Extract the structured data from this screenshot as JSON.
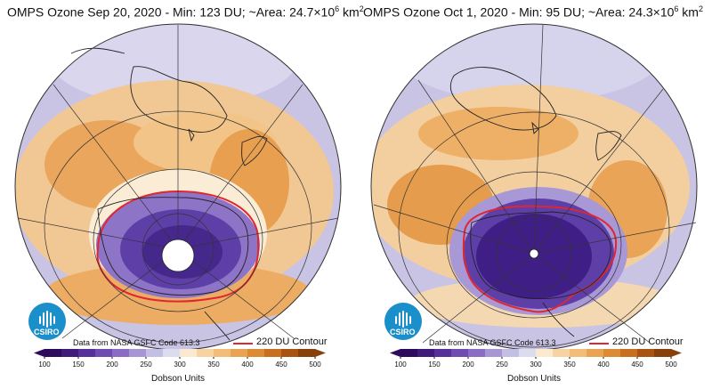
{
  "panels": [
    {
      "title_prefix": "OMPS Ozone  Sep 20, 2020 - Min: 123 DU; ~Area: 24.7×10",
      "title_exp": "6",
      "title_unit": " km",
      "title_unit_exp": "2",
      "min_du": 123,
      "area_million_km2": 24.7,
      "logo_label": "CSIRO",
      "credit": "Data from NASA GSFC Code 613.3",
      "contour_label": "220 DU Contour"
    },
    {
      "title_prefix": "OMPS Ozone  Oct  1, 2020 - Min:  95 DU; ~Area: 24.3×10",
      "title_exp": "6",
      "title_unit": " km",
      "title_unit_exp": "2",
      "min_du": 95,
      "area_million_km2": 24.3,
      "logo_label": "CSIRO",
      "credit": "Data from NASA GSFC Code 613.3",
      "contour_label": "220 DU Contour"
    }
  ],
  "colorbar": {
    "ticks": [
      "100",
      "150",
      "200",
      "250",
      "300",
      "350",
      "400",
      "450",
      "500"
    ],
    "units": "Dobson Units",
    "colors": [
      "#2d0a5c",
      "#3f1a7a",
      "#55309a",
      "#6e4cb0",
      "#8a6cc4",
      "#a795d4",
      "#c4bde4",
      "#dcdcef",
      "#fbe9d0",
      "#f7d3a2",
      "#f1bd78",
      "#e9a352",
      "#dc8a33",
      "#c86f1f",
      "#a85312",
      "#874009"
    ]
  },
  "contour_color": "#e0262f"
}
